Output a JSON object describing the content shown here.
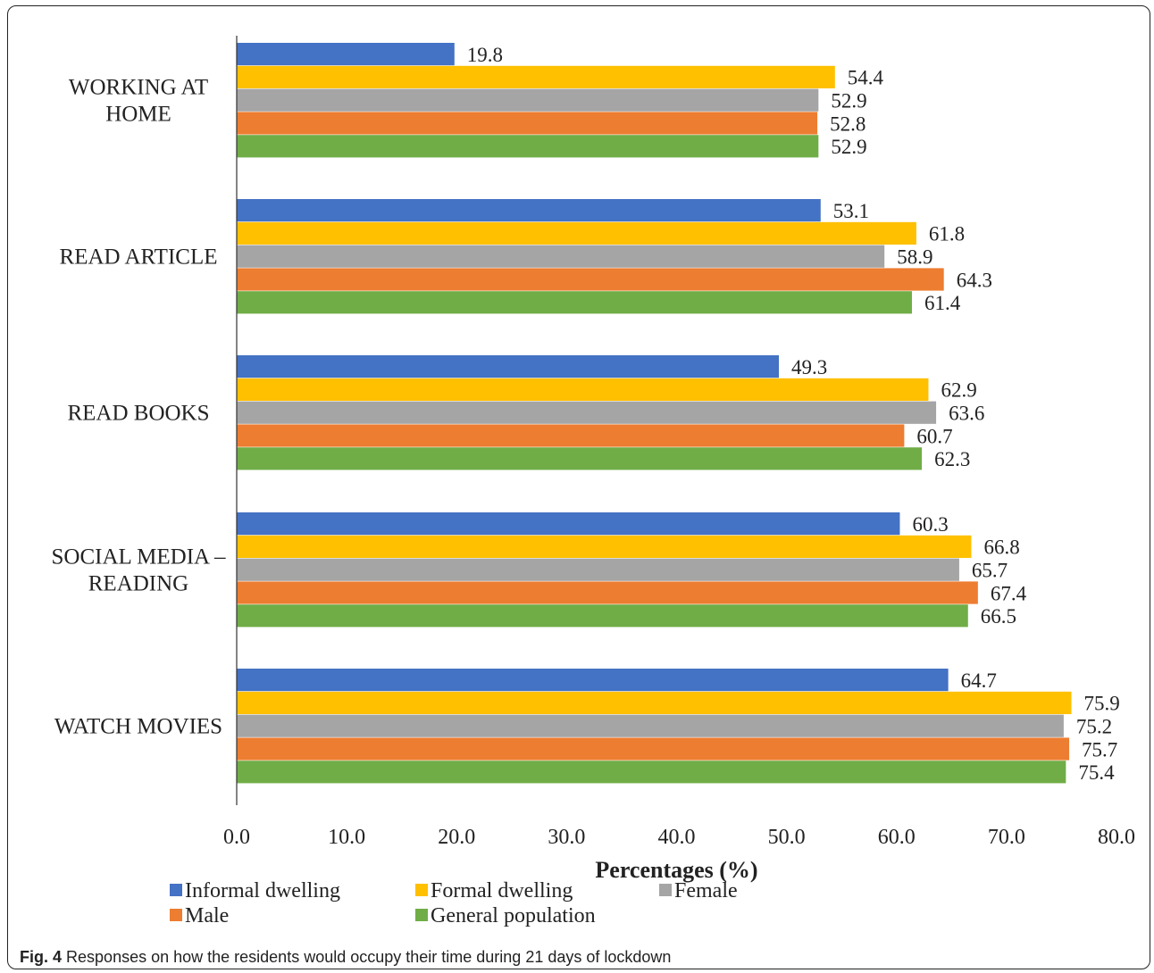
{
  "figure_caption": {
    "label": "Fig. 4",
    "text": "Responses on how the residents would occupy their time during 21 days of lockdown"
  },
  "chart_data": {
    "type": "bar",
    "orientation": "horizontal",
    "categories": [
      [
        "WORKING AT",
        "HOME"
      ],
      [
        "READ ARTICLE"
      ],
      [
        "READ BOOKS"
      ],
      [
        "SOCIAL MEDIA –",
        "READING"
      ],
      [
        "WATCH MOVIES"
      ]
    ],
    "series": [
      {
        "name": "Informal dwelling",
        "color": "#4472C4",
        "values": [
          19.8,
          53.1,
          49.3,
          60.3,
          64.7
        ]
      },
      {
        "name": "Formal dwelling",
        "color": "#FFC000",
        "values": [
          54.4,
          61.8,
          62.9,
          66.8,
          75.9
        ]
      },
      {
        "name": "Female",
        "color": "#A5A5A5",
        "values": [
          52.9,
          58.9,
          63.6,
          65.7,
          75.2
        ]
      },
      {
        "name": "Male",
        "color": "#ED7D31",
        "values": [
          52.8,
          64.3,
          60.7,
          67.4,
          75.7
        ]
      },
      {
        "name": "General population",
        "color": "#70AD47",
        "values": [
          52.9,
          61.4,
          62.3,
          66.5,
          75.4
        ]
      }
    ],
    "xlabel": "Percentages (%)",
    "ylabel": "",
    "xlim": [
      0,
      80
    ],
    "xticks": [
      "0.0",
      "10.0",
      "20.0",
      "30.0",
      "40.0",
      "50.0",
      "60.0",
      "70.0",
      "80.0"
    ],
    "grid": false,
    "legend_position": "bottom-left",
    "data_labels": true
  }
}
